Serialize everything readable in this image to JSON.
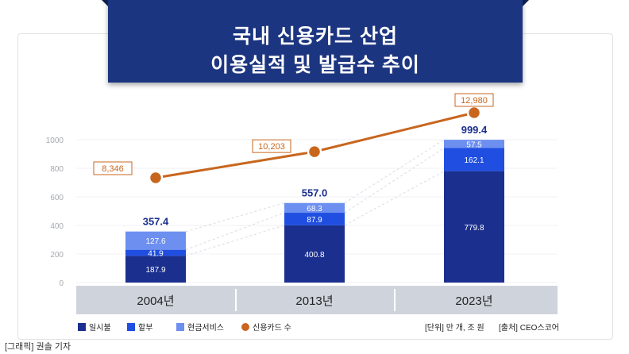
{
  "title": {
    "line1": "국내 신용카드 산업",
    "line2": "이용실적 및 발급수 추이"
  },
  "caption": "[그래픽] 권솔 기자",
  "unit_note": "[단위] 만 개, 조 원",
  "source_note": "[출처] CEO스코어",
  "colors": {
    "banner": "#1c3580",
    "lump_sum": "#1a2f8e",
    "installment": "#1f4ee0",
    "cash_service": "#6d8ff0",
    "line": "#c8661e",
    "total_label": "#1a2f8e",
    "axis_band": "#cfd4dc"
  },
  "chart_data": {
    "type": "bar",
    "stacked": true,
    "categories": [
      "2004년",
      "2013년",
      "2023년"
    ],
    "yticks": [
      0,
      200,
      400,
      600,
      800,
      1000
    ],
    "ylim": [
      0,
      1000
    ],
    "series": [
      {
        "name": "일시불",
        "values": [
          187.9,
          400.8,
          779.8
        ]
      },
      {
        "name": "할부",
        "values": [
          41.9,
          87.9,
          162.1
        ]
      },
      {
        "name": "현금서비스",
        "values": [
          127.6,
          68.3,
          57.5
        ]
      }
    ],
    "totals": [
      "357.4",
      "557.0",
      "999.4"
    ],
    "line_series": {
      "name": "신용카드 수",
      "values": [
        8346,
        10203,
        12980
      ],
      "labels": [
        "8,346",
        "10,203",
        "12,980"
      ]
    },
    "legend": [
      "일시불",
      "할부",
      "현금서비스",
      "신용카드 수"
    ]
  }
}
